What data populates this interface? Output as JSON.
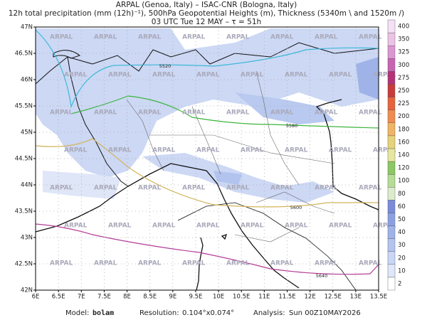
{
  "header": {
    "line1": "ARPAL (Genoa, Italy)  –  ISAC-CNR (Bologna, Italy)",
    "line2": "12h total precipitation (mm (12h)⁻¹), 500hPa Geopotential Heights (m), Thickness (5340m \\ and 1520m /)",
    "line3": "03 UTC Tue 12 MAY  –  τ = 51h"
  },
  "map": {
    "lon_labels": [
      "6E",
      "6.5E",
      "7E",
      "7.5E",
      "8E",
      "8.5E",
      "9E",
      "9.5E",
      "10E",
      "10.5E",
      "11E",
      "11.5E",
      "12E",
      "12.5E",
      "13E",
      "13.5E"
    ],
    "lat_labels": [
      "42N",
      "42.5N",
      "43N",
      "43.5N",
      "44N",
      "44.5N",
      "45N",
      "45.5N",
      "46N",
      "46.5N",
      "47N"
    ],
    "contour_labels": [
      "5520",
      "5580",
      "5600",
      "5640"
    ],
    "watermark": "ARPAL"
  },
  "colorbar": {
    "labels": [
      "2",
      "10",
      "20",
      "30",
      "40",
      "50",
      "60",
      "80",
      "100",
      "120",
      "140",
      "160",
      "180",
      "200",
      "225",
      "250",
      "275",
      "300",
      "325",
      "350",
      "400"
    ]
  },
  "footer": {
    "model_label": "Model:",
    "model": "bolam",
    "resolution_label": "Resolution:",
    "resolution": "0.104°x0.074°",
    "analysis_label": "Analysis:",
    "analysis": "Sun 00Z10MAY2026"
  }
}
